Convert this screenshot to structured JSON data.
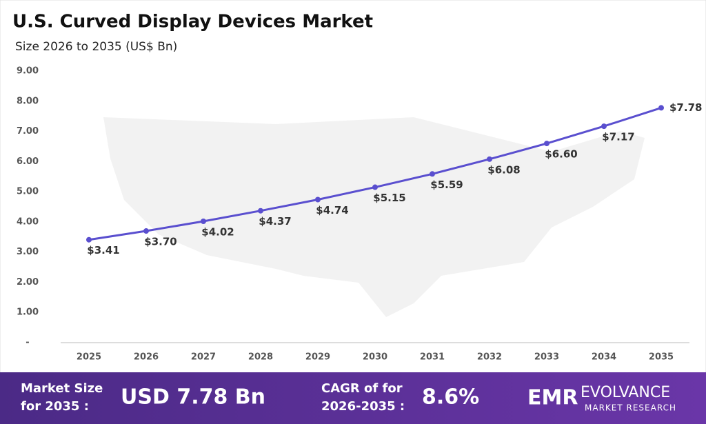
{
  "chart_data": {
    "type": "line",
    "title": "U.S. Curved Display Devices Market",
    "subtitle": "Size 2026 to 2035 (US$ Bn)",
    "categories": [
      "2025",
      "2026",
      "2027",
      "2028",
      "2029",
      "2030",
      "2031",
      "2032",
      "2033",
      "2034",
      "2035"
    ],
    "series": [
      {
        "color": "#5a4fcf",
        "values": [
          3.41,
          3.7,
          4.02,
          4.37,
          4.74,
          5.15,
          5.59,
          6.08,
          6.6,
          7.17,
          7.78
        ],
        "value_labels": [
          "$3.41",
          "$3.70",
          "$4.02",
          "$4.37",
          "$4.74",
          "$5.15",
          "$5.59",
          "$6.08",
          "$6.60",
          "$7.17",
          "$7.78"
        ]
      }
    ],
    "ylim": [
      0,
      9
    ],
    "yticks": [
      {
        "value": 0,
        "label": "-"
      },
      {
        "value": 1,
        "label": "1.00"
      },
      {
        "value": 2,
        "label": "2.00"
      },
      {
        "value": 3,
        "label": "3.00"
      },
      {
        "value": 4,
        "label": "4.00"
      },
      {
        "value": 5,
        "label": "5.00"
      },
      {
        "value": 6,
        "label": "6.00"
      },
      {
        "value": 7,
        "label": "7.00"
      },
      {
        "value": 8,
        "label": "8.00"
      },
      {
        "value": 9,
        "label": "9.00"
      }
    ]
  },
  "footer": {
    "market_size_label": [
      "Market Size",
      "for 2035 :"
    ],
    "market_size_value": "USD 7.78 Bn",
    "cagr_label": [
      "CAGR of for",
      "2026-2035 :"
    ],
    "cagr_value": "8.6%",
    "logo": {
      "mark": "EMR",
      "name": "EVOLVANCE",
      "tagline": "MARKET RESEARCH"
    }
  }
}
